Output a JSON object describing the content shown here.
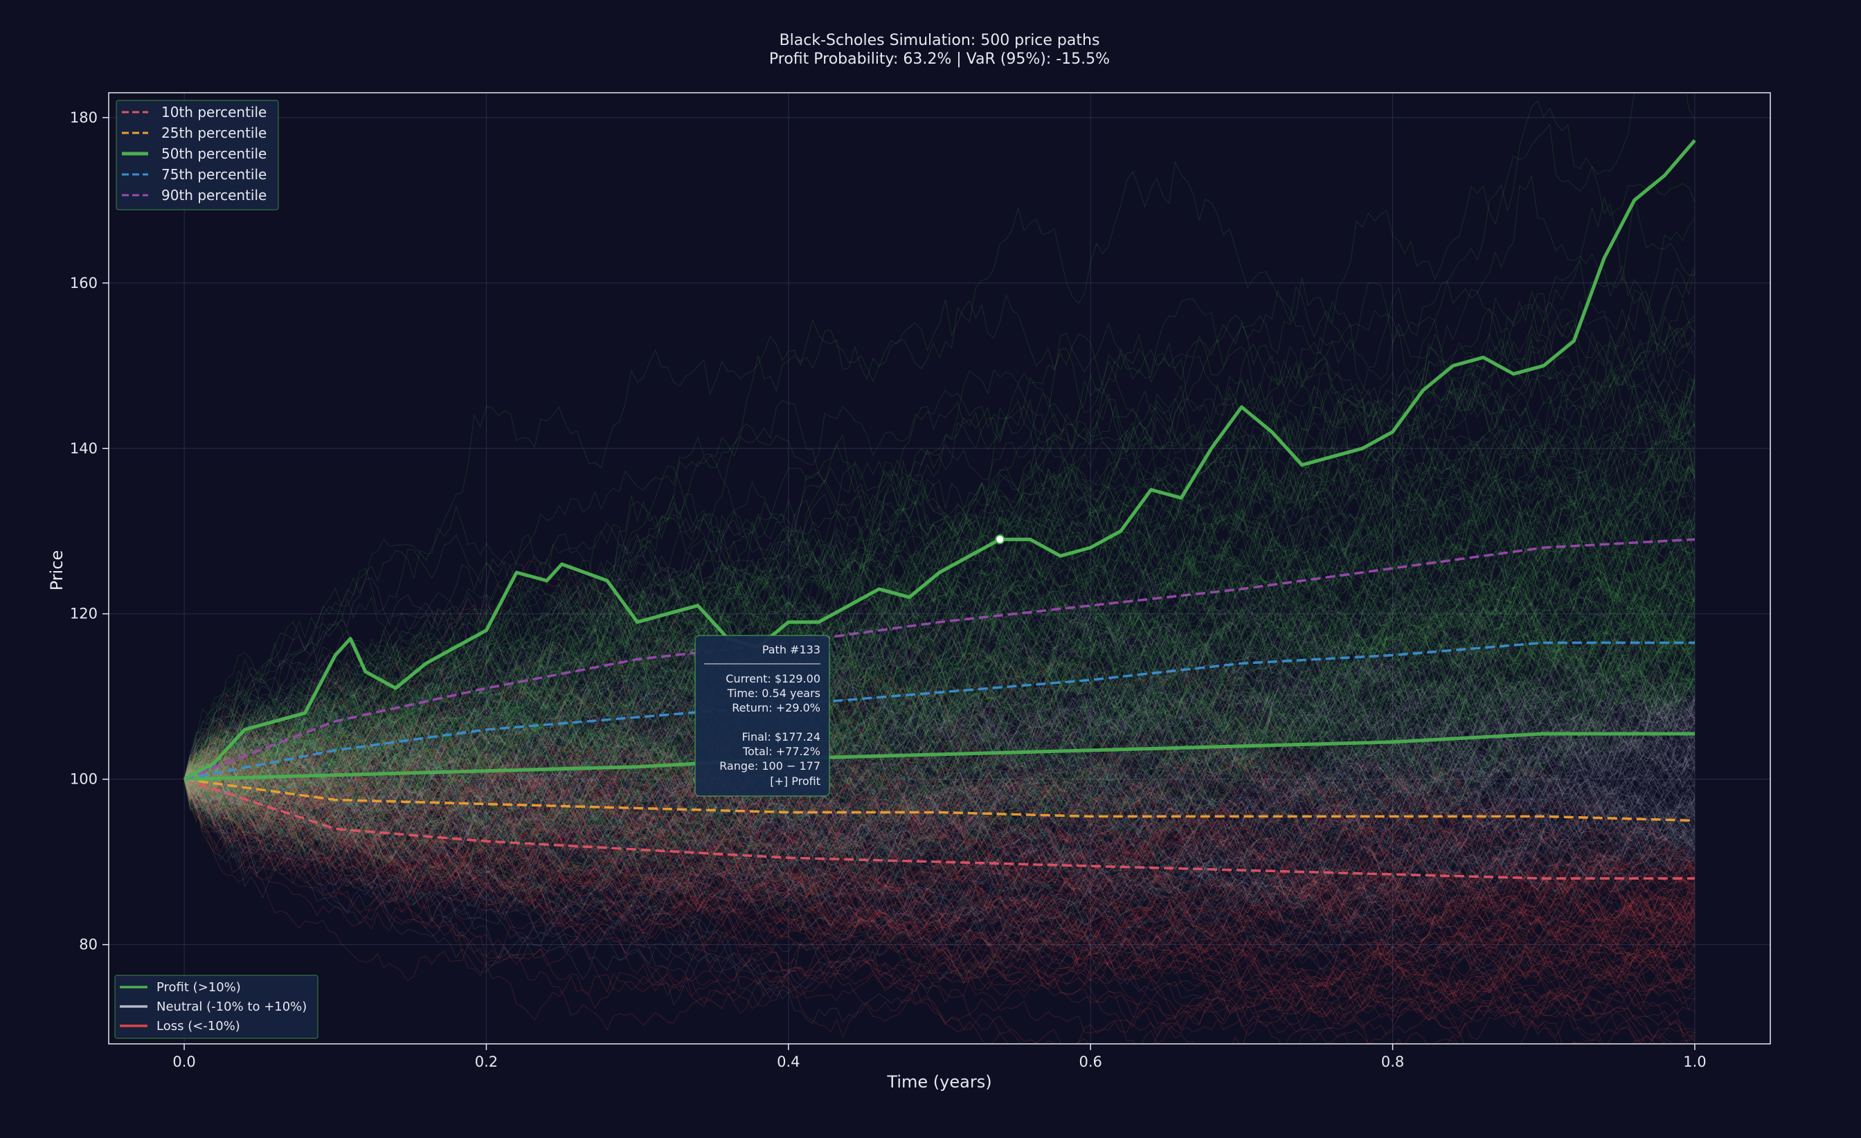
{
  "chart_data": {
    "type": "line",
    "title": "Black-Scholes Simulation: 500 price paths",
    "subtitle": "Profit Probability: 63.2% | VaR (95%): -15.5%",
    "xlabel": "Time (years)",
    "ylabel": "Price",
    "xlim": [
      -0.05,
      1.05
    ],
    "ylim": [
      68,
      183
    ],
    "xticks": [
      0.0,
      0.2,
      0.4,
      0.6,
      0.8,
      1.0
    ],
    "xtick_labels": [
      "0.0",
      "0.2",
      "0.4",
      "0.6",
      "0.8",
      "1.0"
    ],
    "yticks": [
      80,
      100,
      120,
      140,
      160,
      180
    ],
    "ytick_labels": [
      "80",
      "100",
      "120",
      "140",
      "160",
      "180"
    ],
    "grid": true,
    "num_paths": 500,
    "start_price": 100,
    "percentiles": [
      {
        "name": "10th percentile",
        "color": "#e05565",
        "style": "dashed",
        "x": [
          0,
          0.1,
          0.2,
          0.3,
          0.4,
          0.5,
          0.6,
          0.7,
          0.8,
          0.9,
          1.0
        ],
        "y": [
          100,
          94.0,
          92.5,
          91.5,
          90.5,
          90.0,
          89.5,
          89.0,
          88.5,
          88.0,
          88.0
        ]
      },
      {
        "name": "25th percentile",
        "color": "#f0a030",
        "style": "dashed",
        "x": [
          0,
          0.1,
          0.2,
          0.3,
          0.4,
          0.5,
          0.6,
          0.7,
          0.8,
          0.9,
          1.0
        ],
        "y": [
          100,
          97.5,
          97.0,
          96.5,
          96.0,
          96.0,
          95.5,
          95.5,
          95.5,
          95.5,
          95.0
        ]
      },
      {
        "name": "50th percentile",
        "color": "#4caf50",
        "style": "solid",
        "x": [
          0,
          0.1,
          0.2,
          0.3,
          0.4,
          0.5,
          0.6,
          0.7,
          0.8,
          0.9,
          1.0
        ],
        "y": [
          100,
          100.5,
          101.0,
          101.5,
          102.5,
          103.0,
          103.5,
          104.0,
          104.5,
          105.5,
          105.5
        ]
      },
      {
        "name": "75th percentile",
        "color": "#3a90d0",
        "style": "dashed",
        "x": [
          0,
          0.1,
          0.2,
          0.3,
          0.4,
          0.5,
          0.6,
          0.7,
          0.8,
          0.9,
          1.0
        ],
        "y": [
          100,
          103.5,
          106.0,
          107.5,
          109.0,
          110.5,
          112.0,
          114.0,
          115.0,
          116.5,
          116.5
        ]
      },
      {
        "name": "90th percentile",
        "color": "#9c4ab0",
        "style": "dashed",
        "x": [
          0,
          0.1,
          0.2,
          0.3,
          0.4,
          0.5,
          0.6,
          0.7,
          0.8,
          0.9,
          1.0
        ],
        "y": [
          100,
          107.0,
          111.0,
          114.5,
          116.5,
          119.0,
          121.0,
          123.0,
          125.5,
          128.0,
          129.0
        ]
      }
    ],
    "highlighted_path": {
      "name": "Path #133",
      "color": "#4caf50",
      "x": [
        0,
        0.02,
        0.04,
        0.06,
        0.08,
        0.1,
        0.11,
        0.12,
        0.14,
        0.16,
        0.18,
        0.2,
        0.22,
        0.24,
        0.25,
        0.28,
        0.3,
        0.32,
        0.34,
        0.36,
        0.38,
        0.4,
        0.42,
        0.44,
        0.46,
        0.48,
        0.5,
        0.52,
        0.54,
        0.56,
        0.58,
        0.6,
        0.62,
        0.64,
        0.66,
        0.68,
        0.7,
        0.72,
        0.74,
        0.76,
        0.78,
        0.8,
        0.82,
        0.84,
        0.86,
        0.88,
        0.9,
        0.92,
        0.94,
        0.96,
        0.98,
        1.0
      ],
      "y": [
        100,
        102,
        106,
        107,
        108,
        115,
        117,
        113,
        111,
        114,
        116,
        118,
        125,
        124,
        126,
        124,
        119,
        120,
        121,
        117,
        116,
        119,
        119,
        121,
        123,
        122,
        125,
        127,
        129,
        129,
        127,
        128,
        130,
        135,
        134,
        140,
        145,
        142,
        138,
        139,
        140,
        142,
        147,
        150,
        151,
        149,
        150,
        153,
        163,
        170,
        173,
        177.24
      ]
    },
    "hover_point": {
      "x": 0.54,
      "y": 129.0
    },
    "tooltip": {
      "lines": [
        "Path #133",
        "Current: $129.00",
        "Time: 0.54 years",
        "Return: +29.0%",
        "Final: $177.24",
        "Total: +77.2%",
        "Range: 100 − 177",
        "[+] Profit"
      ]
    },
    "legend": {
      "placement": "top-left",
      "entries": [
        "10th percentile",
        "25th percentile",
        "50th percentile",
        "75th percentile",
        "90th percentile"
      ]
    },
    "category_legend": {
      "placement": "bottom-left",
      "entries": [
        {
          "label": "Profit (>10%)",
          "color": "#4caf50"
        },
        {
          "label": "Neutral (-10% to +10%)",
          "color": "#b8b8c8"
        },
        {
          "label": "Loss (<-10%)",
          "color": "#e04545"
        }
      ]
    },
    "colors": {
      "background": "#0e0f22",
      "plot_background": "#0e0f22",
      "profit": "#4caf50",
      "neutral": "#b8b8c8",
      "loss": "#e04545",
      "text": "#e8e8f0"
    }
  }
}
